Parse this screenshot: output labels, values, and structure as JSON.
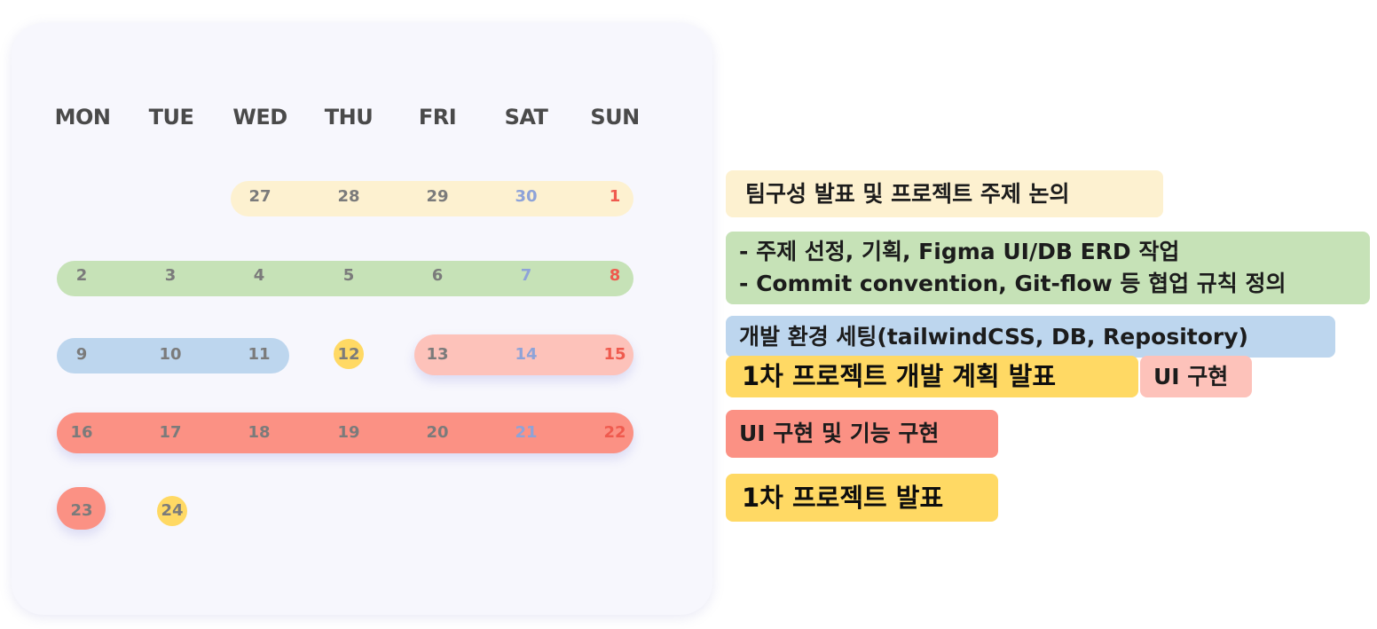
{
  "weekdays": [
    "MON",
    "TUE",
    "WED",
    "THU",
    "FRI",
    "SAT",
    "SUN"
  ],
  "colors": {
    "card_bg": "#f7f7fd",
    "week1_bar": "#fdf1d0",
    "week2_bar": "#c6e2b7",
    "setup_bar": "#bdd6ee",
    "plan_dot": "#ffd964",
    "ui_bar": "#fdc2ba",
    "feature_bar": "#fb9184",
    "saturday_text": "#8ea3d8",
    "sunday_text": "#ef5a4e"
  },
  "calendar": {
    "week1": [
      "27",
      "28",
      "29",
      "30",
      "1"
    ],
    "week2": [
      "2",
      "3",
      "4",
      "5",
      "6",
      "7",
      "8"
    ],
    "week3": [
      "9",
      "10",
      "11",
      "12",
      "13",
      "14",
      "15"
    ],
    "week4": [
      "16",
      "17",
      "18",
      "19",
      "20",
      "21",
      "22"
    ],
    "week5": [
      "23",
      "24"
    ]
  },
  "events": {
    "team_formation": "팀구성 발표 및 프로젝트 주제 논의",
    "planning_line1": "- 주제 선정, 기획, Figma UI/DB ERD 작업",
    "planning_line2": "- Commit convention, Git-flow 등 협업 규칙 정의",
    "env_setup": "개발 환경 세팅(tailwindCSS, DB, Repository)",
    "plan_presentation": "1차 프로젝트 개발 계획 발표",
    "ui_impl": "UI 구현",
    "ui_feature_impl": "UI 구현 및 기능 구현",
    "final_presentation": "1차 프로젝트 발표"
  }
}
